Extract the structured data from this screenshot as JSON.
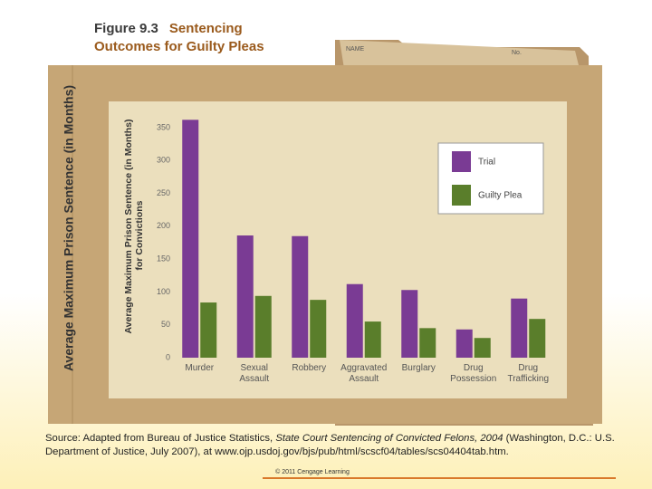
{
  "figure_label": "Figure 9.3",
  "chart_data": {
    "type": "bar",
    "title": "Sentencing Outcomes for Guilty Pleas",
    "y_label": "Average Maximum Prison Sentence (in Months)",
    "y_label_note": "for Convictions",
    "categories": [
      "Murder",
      "Sexual Assault",
      "Robbery",
      "Aggravated Assault",
      "Burglary",
      "Drug Possession",
      "Drug Trafficking"
    ],
    "series": [
      {
        "name": "Trial",
        "color": "#7a3b94",
        "values": [
          362,
          186,
          185,
          112,
          103,
          43,
          90
        ]
      },
      {
        "name": "Guilty Plea",
        "color": "#5a7e2b",
        "values": [
          84,
          94,
          88,
          55,
          45,
          30,
          59
        ]
      }
    ],
    "ylim": [
      0,
      370
    ],
    "yticks": [
      0,
      50,
      100,
      150,
      200,
      250,
      300,
      350
    ],
    "grid": false,
    "legend": "top-right"
  },
  "folder": {
    "outer_axis_label": "Average Maximum Prison Sentence (in Months)",
    "tab_name": "NAME",
    "tab_number": "No."
  },
  "source": {
    "prefix": "Source: Adapted from Bureau of Justice Statistics, ",
    "title": "State Court Sentencing of Convicted Felons, 2004",
    "suffix": " (Washington, D.C.: U.S. Department of Justice, July 2007), at www.ojp.usdoj.gov/bjs/pub/html/scscf04/tables/scs04404tab.htm."
  },
  "copyright": "© 2011 Cengage Learning"
}
